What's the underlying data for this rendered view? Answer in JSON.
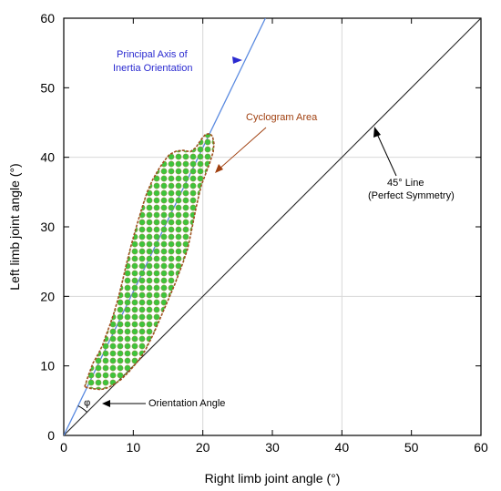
{
  "chart_data": {
    "type": "line",
    "title": "",
    "xlabel": "Right limb joint angle (°)",
    "ylabel": "Left limb joint angle (°)",
    "xlim": [
      0,
      60
    ],
    "ylim": [
      0,
      60
    ],
    "xticks": [
      "0",
      "10",
      "20",
      "30",
      "40",
      "50",
      "60"
    ],
    "yticks": [
      "0",
      "10",
      "20",
      "30",
      "40",
      "50",
      "60"
    ],
    "grid": true,
    "legend": "none",
    "cyclogram": {
      "x": [
        3.0,
        3.6,
        4.2,
        5.0,
        5.6,
        6.0,
        6.6,
        7.2,
        7.8,
        8.4,
        9.0,
        9.6,
        10.2,
        10.8,
        11.4,
        12.0,
        12.8,
        13.6,
        14.4,
        15.2,
        16.2,
        17.2,
        18.2,
        19.0,
        19.8,
        20.4,
        21.0,
        21.4,
        21.6,
        21.5,
        21.0,
        20.4,
        19.8,
        19.4,
        19.0,
        18.6,
        18.2,
        17.8,
        17.2,
        16.6,
        16.0,
        15.4,
        14.8,
        14.2,
        13.6,
        13.0,
        12.4,
        11.8,
        11.2,
        10.6,
        10.0,
        9.4,
        8.8,
        8.2,
        7.6,
        7.0,
        6.4,
        5.8,
        5.2,
        4.4,
        3.6,
        3.0
      ],
      "y": [
        7.0,
        8.8,
        10.4,
        11.8,
        13.0,
        14.2,
        15.8,
        17.6,
        19.6,
        22.0,
        24.6,
        27.0,
        29.2,
        31.2,
        33.2,
        35.0,
        36.8,
        38.2,
        39.4,
        40.4,
        40.9,
        41.0,
        40.8,
        41.4,
        42.6,
        43.3,
        43.4,
        43.0,
        42.0,
        40.8,
        39.2,
        37.6,
        36.0,
        34.4,
        32.6,
        30.6,
        28.6,
        26.8,
        25.0,
        23.4,
        21.8,
        20.4,
        19.0,
        17.6,
        16.2,
        14.8,
        13.6,
        12.4,
        11.4,
        10.6,
        9.9,
        9.2,
        8.6,
        8.0,
        7.6,
        7.2,
        6.9,
        6.7,
        6.6,
        6.7,
        6.8,
        7.0
      ]
    },
    "principal_axis": {
      "x": [
        0,
        29.0
      ],
      "y": [
        0,
        60
      ]
    },
    "symmetry_line": {
      "x": [
        0,
        60
      ],
      "y": [
        0,
        60
      ]
    },
    "annotations": {
      "principal_axis": [
        "Principal Axis of",
        "Inertia Orientation"
      ],
      "cyclogram_area": "Cyclogram Area",
      "symmetry": [
        "45° Line",
        "(Perfect Symmetry)"
      ],
      "orientation": "Orientation Angle",
      "phi": "φ"
    },
    "colors": {
      "cyclogram_fill": "#4dd84d",
      "cyclogram_edge": "#a05020",
      "principal_axis": "#5a8ae0",
      "principal_label": "#2a2ad0",
      "cyclogram_label": "#a04010",
      "grid": "#d8d8d8"
    }
  }
}
